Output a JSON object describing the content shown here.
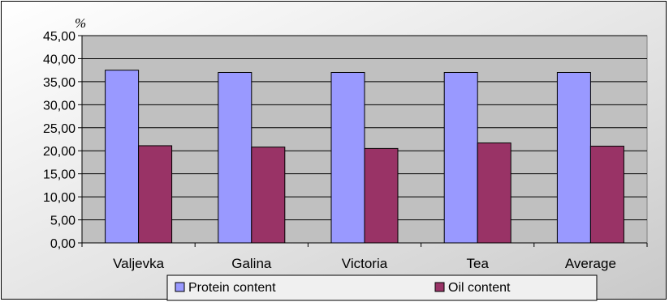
{
  "chart_data": {
    "type": "bar",
    "unit_label": "%",
    "categories": [
      "Valjevka",
      "Galina",
      "Victoria",
      "Tea",
      "Average"
    ],
    "series": [
      {
        "name": "Protein content",
        "color": "#9999ff",
        "values": [
          37.5,
          37.0,
          37.0,
          37.0,
          37.0
        ]
      },
      {
        "name": "Oil content",
        "color": "#993366",
        "values": [
          21.1,
          20.8,
          20.5,
          21.7,
          21.0
        ]
      }
    ],
    "ylim": [
      0,
      45
    ],
    "yticks": [
      "0,00",
      "5,00",
      "10,00",
      "15,00",
      "20,00",
      "25,00",
      "30,00",
      "35,00",
      "40,00",
      "45,00"
    ],
    "grid": true,
    "legend_position": "bottom"
  }
}
